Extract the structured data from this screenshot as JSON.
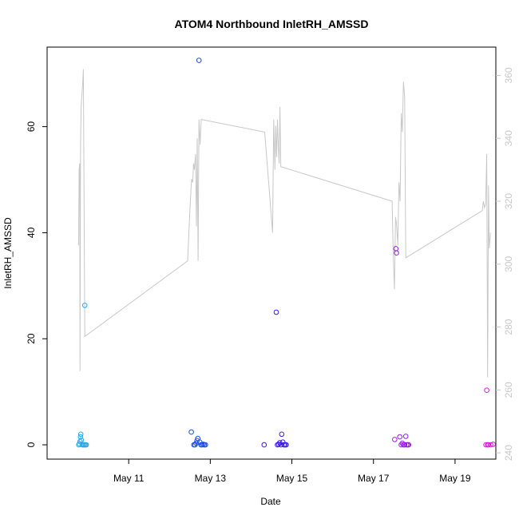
{
  "chart_data": {
    "type": "scatter",
    "title": "ATOM4 Northbound InletRH_AMSSD",
    "xlabel": "Date",
    "ylabel": "InletRH_AMSSD",
    "x_axis": {
      "type": "date",
      "range": [
        "2016-05-09T00:00",
        "2016-05-20T00:00"
      ],
      "ticks": [
        {
          "value": "2016-05-11T00:00",
          "label": "May 11"
        },
        {
          "value": "2016-05-13T00:00",
          "label": "May 13"
        },
        {
          "value": "2016-05-15T00:00",
          "label": "May 15"
        },
        {
          "value": "2016-05-17T00:00",
          "label": "May 17"
        },
        {
          "value": "2016-05-19T00:00",
          "label": "May 19"
        }
      ]
    },
    "y_left": {
      "range": [
        -2.7,
        75.0
      ],
      "ticks": [
        0,
        20,
        40,
        60
      ]
    },
    "y_right": {
      "range": [
        238,
        369
      ],
      "ticks": [
        240,
        260,
        280,
        300,
        320,
        340,
        360
      ],
      "color": "#c8c8c8"
    },
    "grid": false,
    "legend": "none",
    "series": [
      {
        "kind": "points",
        "axis": "left",
        "color": "#29a6e8",
        "points": [
          [
            "2016-05-09T18:40",
            0.0
          ],
          [
            "2016-05-09T19:00",
            0.2
          ],
          [
            "2016-05-09T19:20",
            0.6
          ],
          [
            "2016-05-09T19:40",
            1.5
          ],
          [
            "2016-05-09T19:50",
            2.0
          ],
          [
            "2016-05-09T20:10",
            0.9
          ],
          [
            "2016-05-09T20:40",
            0.0
          ],
          [
            "2016-05-09T21:20",
            0.0
          ],
          [
            "2016-05-09T21:50",
            0.0
          ],
          [
            "2016-05-09T22:10",
            26.3
          ],
          [
            "2016-05-09T22:30",
            0.0
          ],
          [
            "2016-05-09T23:00",
            0.0
          ]
        ]
      },
      {
        "kind": "points",
        "axis": "left",
        "color": "#1a4ee8",
        "points": [
          [
            "2016-05-12T12:50",
            2.4
          ],
          [
            "2016-05-12T14:20",
            0.0
          ],
          [
            "2016-05-12T15:00",
            0.0
          ],
          [
            "2016-05-12T15:40",
            0.3
          ],
          [
            "2016-05-12T16:10",
            0.8
          ],
          [
            "2016-05-12T16:40",
            1.2
          ],
          [
            "2016-05-12T17:20",
            72.5
          ],
          [
            "2016-05-12T17:50",
            0.5
          ],
          [
            "2016-05-12T18:30",
            0.0
          ],
          [
            "2016-05-12T19:10",
            0.0
          ],
          [
            "2016-05-12T19:50",
            0.1
          ],
          [
            "2016-05-12T20:30",
            0.0
          ],
          [
            "2016-05-12T21:10",
            0.0
          ]
        ]
      },
      {
        "kind": "points",
        "axis": "left",
        "color": "#3a1ae8",
        "points": [
          [
            "2016-05-14T07:40",
            0.0
          ],
          [
            "2016-05-14T14:50",
            25.0
          ],
          [
            "2016-05-14T15:30",
            0.0
          ],
          [
            "2016-05-14T16:10",
            0.1
          ],
          [
            "2016-05-14T16:50",
            0.4
          ],
          [
            "2016-05-14T17:30",
            0.0
          ],
          [
            "2016-05-14T18:00",
            2.0
          ],
          [
            "2016-05-14T18:40",
            0.5
          ],
          [
            "2016-05-14T19:20",
            0.0
          ],
          [
            "2016-05-14T20:00",
            0.0
          ],
          [
            "2016-05-14T20:40",
            0.0
          ]
        ]
      },
      {
        "kind": "points",
        "axis": "left",
        "color": "#9a1ae8",
        "points": [
          [
            "2016-05-17T12:30",
            1.0
          ],
          [
            "2016-05-17T13:10",
            37.0
          ],
          [
            "2016-05-17T13:30",
            36.2
          ],
          [
            "2016-05-17T15:30",
            1.5
          ],
          [
            "2016-05-17T16:20",
            0.0
          ],
          [
            "2016-05-17T17:00",
            0.3
          ],
          [
            "2016-05-17T17:40",
            0.0
          ],
          [
            "2016-05-17T18:20",
            0.0
          ],
          [
            "2016-05-17T19:00",
            1.6
          ],
          [
            "2016-05-17T19:30",
            0.0
          ],
          [
            "2016-05-17T20:10",
            0.0
          ],
          [
            "2016-05-17T20:40",
            0.0
          ]
        ]
      },
      {
        "kind": "points",
        "axis": "left",
        "color": "#e01ae0",
        "points": [
          [
            "2016-05-19T18:10",
            0.0
          ],
          [
            "2016-05-19T18:40",
            10.3
          ],
          [
            "2016-05-19T19:10",
            0.0
          ],
          [
            "2016-05-19T19:40",
            0.0
          ],
          [
            "2016-05-19T21:00",
            0.0
          ],
          [
            "2016-05-19T22:20",
            0.1
          ]
        ]
      },
      {
        "kind": "line",
        "axis": "right",
        "color": "#c8c8c8",
        "points": [
          [
            "2016-05-09T18:30",
            306
          ],
          [
            "2016-05-09T18:50",
            330
          ],
          [
            "2016-05-09T19:10",
            332
          ],
          [
            "2016-05-09T19:20",
            266
          ],
          [
            "2016-05-09T19:40",
            338
          ],
          [
            "2016-05-09T20:00",
            350
          ],
          [
            "2016-05-09T21:00",
            358
          ],
          [
            "2016-05-09T21:20",
            362
          ],
          [
            "2016-05-09T22:10",
            277
          ],
          [
            "2016-05-12T10:40",
            301
          ],
          [
            "2016-05-12T12:00",
            317
          ],
          [
            "2016-05-12T13:00",
            327
          ],
          [
            "2016-05-12T13:40",
            326
          ],
          [
            "2016-05-12T14:10",
            332
          ],
          [
            "2016-05-12T14:40",
            330
          ],
          [
            "2016-05-12T15:20",
            335
          ],
          [
            "2016-05-12T15:50",
            312
          ],
          [
            "2016-05-12T16:20",
            340
          ],
          [
            "2016-05-12T16:50",
            301
          ],
          [
            "2016-05-12T17:20",
            346
          ],
          [
            "2016-05-12T18:00",
            338
          ],
          [
            "2016-05-12T18:40",
            346
          ],
          [
            "2016-05-14T08:00",
            342
          ],
          [
            "2016-05-14T12:40",
            310
          ],
          [
            "2016-05-14T13:20",
            346
          ],
          [
            "2016-05-14T14:00",
            330
          ],
          [
            "2016-05-14T14:30",
            344
          ],
          [
            "2016-05-14T15:00",
            334
          ],
          [
            "2016-05-14T15:30",
            346
          ],
          [
            "2016-05-14T16:00",
            338
          ],
          [
            "2016-05-14T16:30",
            332
          ],
          [
            "2016-05-14T17:00",
            350
          ],
          [
            "2016-05-14T17:30",
            331
          ],
          [
            "2016-05-17T11:00",
            320
          ],
          [
            "2016-05-17T11:40",
            302
          ],
          [
            "2016-05-17T12:20",
            292
          ],
          [
            "2016-05-17T13:00",
            315
          ],
          [
            "2016-05-17T13:40",
            312
          ],
          [
            "2016-05-17T14:20",
            306
          ],
          [
            "2016-05-17T15:00",
            326
          ],
          [
            "2016-05-17T15:40",
            320
          ],
          [
            "2016-05-17T16:20",
            348
          ],
          [
            "2016-05-17T17:00",
            342
          ],
          [
            "2016-05-17T17:40",
            358
          ],
          [
            "2016-05-17T18:20",
            353
          ],
          [
            "2016-05-17T19:00",
            302
          ],
          [
            "2016-05-19T16:00",
            317
          ],
          [
            "2016-05-19T16:40",
            320
          ],
          [
            "2016-05-19T17:20",
            318
          ],
          [
            "2016-05-19T18:00",
            319
          ],
          [
            "2016-05-19T18:40",
            335
          ],
          [
            "2016-05-19T19:10",
            264
          ],
          [
            "2016-05-19T19:40",
            325
          ],
          [
            "2016-05-19T20:10",
            305
          ],
          [
            "2016-05-19T20:50",
            310
          ]
        ]
      }
    ]
  }
}
